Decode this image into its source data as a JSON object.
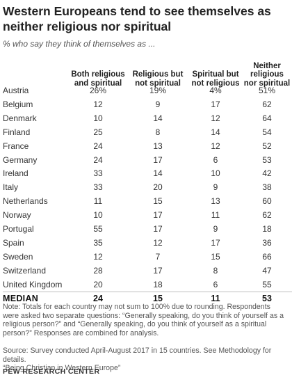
{
  "title": "Western Europeans tend to see themselves as neither religious nor spiritual",
  "subtitle": "% who say they think of themselves as ...",
  "columns": [
    "Both religious and spiritual",
    "Religious but not spiritual",
    "Spiritual but not religious",
    "Neither religious nor spiritual"
  ],
  "chart_data": {
    "type": "table",
    "title": "Western Europeans tend to see themselves as neither religious nor spiritual",
    "subtitle": "% who say they think of themselves as ...",
    "columns": [
      "Both religious and spiritual",
      "Religious but not spiritual",
      "Spiritual but not religious",
      "Neither religious nor spiritual"
    ],
    "rows": [
      {
        "country": "Austria",
        "values": [
          "26%",
          "19%",
          "4%",
          "51%"
        ]
      },
      {
        "country": "Belgium",
        "values": [
          "12",
          "9",
          "17",
          "62"
        ]
      },
      {
        "country": "Denmark",
        "values": [
          "10",
          "14",
          "12",
          "64"
        ]
      },
      {
        "country": "Finland",
        "values": [
          "25",
          "8",
          "14",
          "54"
        ]
      },
      {
        "country": "France",
        "values": [
          "24",
          "13",
          "12",
          "52"
        ]
      },
      {
        "country": "Germany",
        "values": [
          "24",
          "17",
          "6",
          "53"
        ]
      },
      {
        "country": "Ireland",
        "values": [
          "33",
          "14",
          "10",
          "42"
        ]
      },
      {
        "country": "Italy",
        "values": [
          "33",
          "20",
          "9",
          "38"
        ]
      },
      {
        "country": "Netherlands",
        "values": [
          "11",
          "15",
          "13",
          "60"
        ]
      },
      {
        "country": "Norway",
        "values": [
          "10",
          "17",
          "11",
          "62"
        ]
      },
      {
        "country": "Portugal",
        "values": [
          "55",
          "17",
          "9",
          "18"
        ]
      },
      {
        "country": "Spain",
        "values": [
          "35",
          "12",
          "17",
          "36"
        ]
      },
      {
        "country": "Sweden",
        "values": [
          "12",
          "7",
          "15",
          "66"
        ]
      },
      {
        "country": "Switzerland",
        "values": [
          "28",
          "17",
          "8",
          "47"
        ]
      },
      {
        "country": "United Kingdom",
        "values": [
          "20",
          "18",
          "6",
          "55"
        ]
      }
    ],
    "median": {
      "country": "MEDIAN",
      "values": [
        "24",
        "15",
        "11",
        "53"
      ]
    }
  },
  "note": [
    "Note: Totals for each country may not sum to 100% due to rounding. Respondents were asked two separate questions: “Generally speaking, do you think of yourself as a religious person?” and “Generally speaking, do you think of yourself as a spiritual person?” Responses are combined for analysis."
  ],
  "source": [
    "Source: Survey conducted April-August 2017 in 15 countries. See Methodology for details.",
    "“Being Christian in Western Europe”"
  ],
  "footer": "PEW RESEARCH CENTER"
}
